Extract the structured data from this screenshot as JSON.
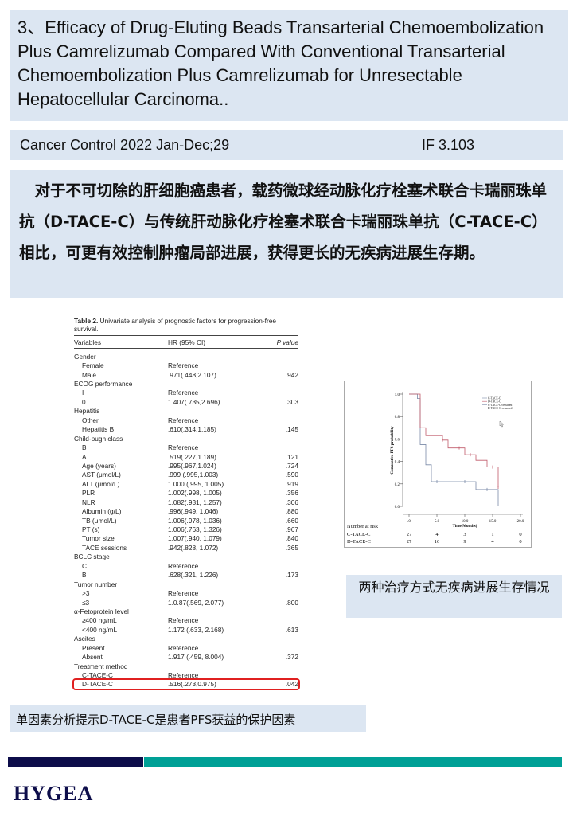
{
  "title": "3、Efficacy of Drug-Eluting Beads Transarterial Chemoembolization Plus Camrelizumab Compared With Conventional Transarterial Chemoembolization Plus Camrelizumab for Unresectable Hepatocellular Carcinoma..",
  "journal": {
    "citation": "Cancer Control 2022 Jan-Dec;29",
    "impact_factor": "IF 3.103"
  },
  "summary": "　对于不可切除的肝细胞癌患者，载药微球经动脉化疗栓塞术联合卡瑞丽珠单抗（D-TACE-C）与传统肝动脉化疗栓塞术联合卡瑞丽珠单抗（C-TACE-C）相比，可更有效控制肿瘤局部进展，获得更长的无疾病进展生存期。",
  "table": {
    "caption_bold": "Table 2.",
    "caption": " Univariate analysis of prognostic factors for progression-free survival.",
    "headers": [
      "Variables",
      "HR (95% CI)",
      "P value"
    ],
    "rows": [
      [
        "Gender",
        "",
        ""
      ],
      [
        "Female",
        "Reference",
        ""
      ],
      [
        "Male",
        ".971(.448,2.107)",
        ".942"
      ],
      [
        "ECOG performance",
        "",
        ""
      ],
      [
        "I",
        "Reference",
        ""
      ],
      [
        "0",
        "1.407(.735,2.696)",
        ".303"
      ],
      [
        "Hepatitis",
        "",
        ""
      ],
      [
        "Other",
        "Reference",
        ""
      ],
      [
        "Hepatitis B",
        ".610(.314,1.185)",
        ".145"
      ],
      [
        "Child-pugh class",
        "",
        ""
      ],
      [
        "B",
        "Reference",
        ""
      ],
      [
        "A",
        ".519(.227,1.189)",
        ".121"
      ],
      [
        "Age (years)",
        ".995(.967,1.024)",
        ".724"
      ],
      [
        "AST (μmol/L)",
        ".999 (.995,1.003)",
        ".590"
      ],
      [
        "ALT (μmol/L)",
        "1.000 (.995, 1.005)",
        ".919"
      ],
      [
        "PLR",
        "1.002(.998, 1.005)",
        ".356"
      ],
      [
        "NLR",
        "1.082(.931, 1.257)",
        ".306"
      ],
      [
        "Albumin (g/L)",
        ".996(.949, 1.046)",
        ".880"
      ],
      [
        "TB (μmol/L)",
        "1.006(.978, 1.036)",
        ".660"
      ],
      [
        "PT (s)",
        "1.006(.763, 1.326)",
        ".967"
      ],
      [
        "Tumor size",
        "1.007(.940, 1.079)",
        ".840"
      ],
      [
        "TACE sessions",
        ".942(.828, 1.072)",
        ".365"
      ],
      [
        "BCLC stage",
        "",
        ""
      ],
      [
        "C",
        "Reference",
        ""
      ],
      [
        "B",
        ".628(.321, 1.226)",
        ".173"
      ],
      [
        "Tumor number",
        "",
        ""
      ],
      [
        ">3",
        "Reference",
        ""
      ],
      [
        "≤3",
        "1.0.87(.569, 2.077)",
        ".800"
      ],
      [
        "α-Fetoprotein level",
        "",
        ""
      ],
      [
        "≥400 ng/mL",
        "Reference",
        ""
      ],
      [
        "<400 ng/mL",
        "1.172 (.633, 2.168)",
        ".613"
      ],
      [
        "Ascites",
        "",
        ""
      ],
      [
        "Present",
        "Reference",
        ""
      ],
      [
        "Absent",
        "1.917 (.459, 8.004)",
        ".372"
      ],
      [
        "Treatment method",
        "",
        ""
      ],
      [
        "C-TACE-C",
        "Reference",
        ""
      ],
      [
        "D-TACE-C",
        ".516(.273,0.975)",
        ".042"
      ]
    ],
    "group_rows": [
      0,
      3,
      6,
      9,
      22,
      25,
      28,
      31,
      34
    ],
    "highlighted_row": 36,
    "highlight_color": "#e02020"
  },
  "chart_data": {
    "type": "line",
    "xlabel": "Time(Months)",
    "ylabel": "Cumulative PFS probability",
    "xlim": [
      0,
      20
    ],
    "ylim": [
      0,
      1
    ],
    "xticks": [
      ".0",
      "5.0",
      "10.0",
      "15.0",
      "20.0"
    ],
    "yticks": [
      "0.0",
      "0.2",
      "0.4",
      "0.6",
      "0.8",
      "1.0"
    ],
    "legend": [
      "C-TACE-C",
      "D-TACE-C",
      "C-TACE-C-censored",
      "D-TACE-C-censored"
    ],
    "legend_position": "top-right",
    "series": [
      {
        "name": "C-TACE-C",
        "color": "#7a8aa8",
        "steps": [
          [
            0,
            1.0
          ],
          [
            1.5,
            0.96
          ],
          [
            2,
            0.55
          ],
          [
            3,
            0.37
          ],
          [
            4,
            0.22
          ],
          [
            12,
            0.15
          ],
          [
            16,
            0.0
          ]
        ],
        "censored": [
          [
            5,
            0.22
          ],
          [
            10,
            0.22
          ],
          [
            14,
            0.15
          ]
        ]
      },
      {
        "name": "D-TACE-C",
        "color": "#c05a6a",
        "steps": [
          [
            0,
            1.0
          ],
          [
            2,
            0.7
          ],
          [
            3,
            0.63
          ],
          [
            6,
            0.59
          ],
          [
            7,
            0.52
          ],
          [
            10,
            0.46
          ],
          [
            12,
            0.41
          ],
          [
            14,
            0.35
          ],
          [
            16,
            0.17
          ]
        ],
        "censored": [
          [
            6,
            0.59
          ],
          [
            9,
            0.52
          ],
          [
            11,
            0.46
          ],
          [
            15,
            0.35
          ],
          [
            16,
            0.17
          ]
        ]
      }
    ],
    "risk_table": {
      "label": "Number at risk",
      "rows": [
        {
          "name": "C-TACE-C",
          "values": [
            "27",
            "4",
            "3",
            "1",
            "0"
          ]
        },
        {
          "name": "D-TACE-C",
          "values": [
            "27",
            "16",
            "9",
            "4",
            "0"
          ]
        }
      ]
    }
  },
  "chart_caption": "两种治疗方式无疾病进展生存情况",
  "table_caption": "单因素分析提示D-TACE-C是患者PFS获益的保护因素",
  "logo": "HYGEA",
  "colors": {
    "box": "#dce6f2",
    "navy": "#0d0d4a",
    "teal": "#00a096"
  }
}
